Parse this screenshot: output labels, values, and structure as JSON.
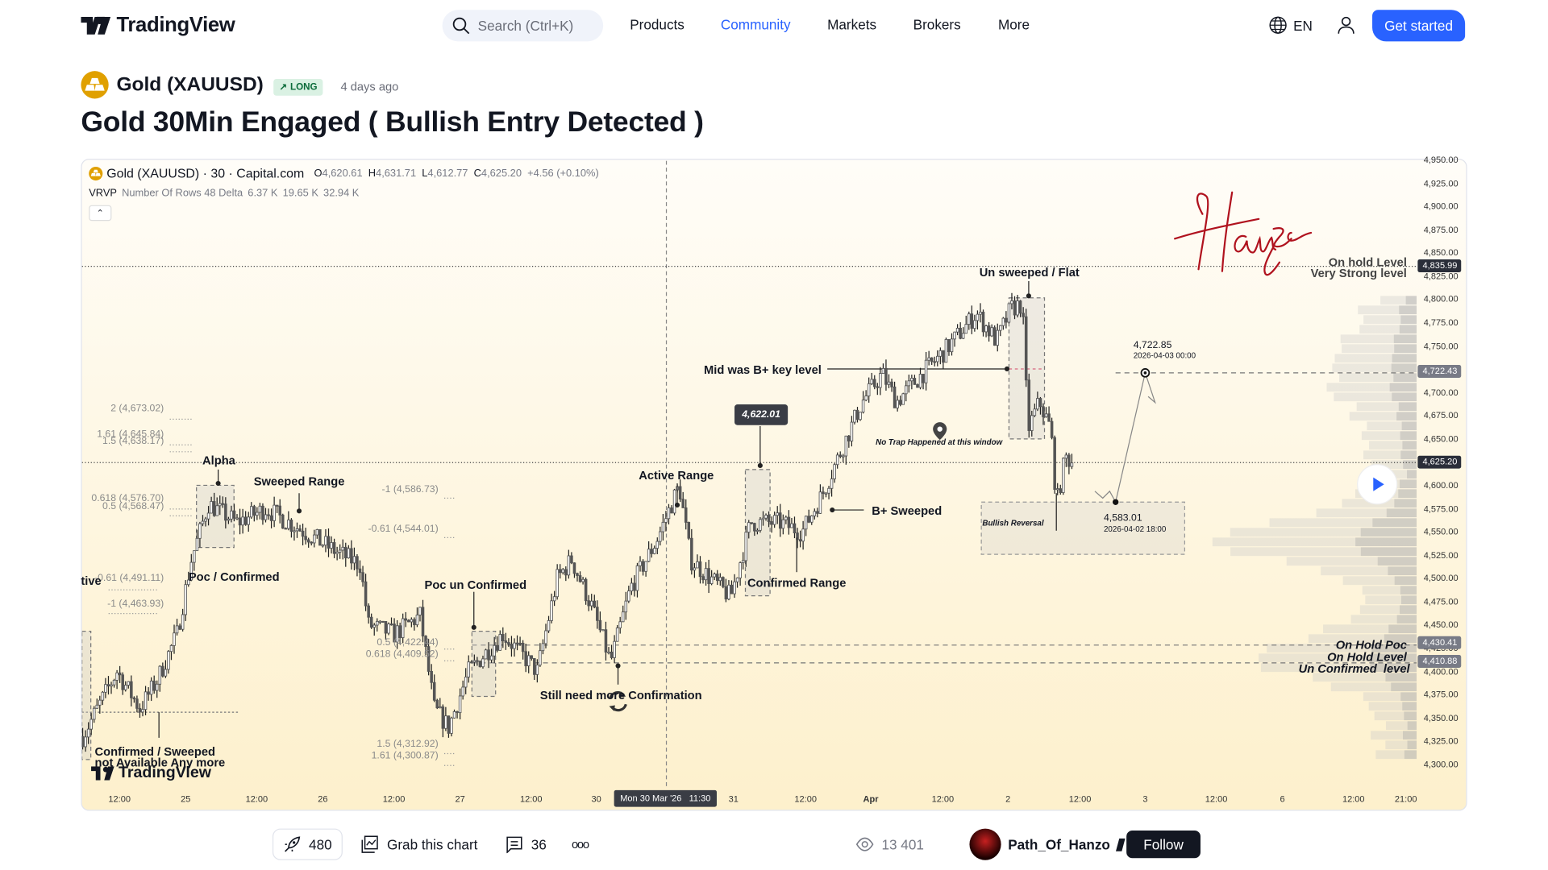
{
  "header": {
    "brand": "TradingView",
    "search_placeholder": "Search (Ctrl+K)",
    "nav": [
      "Products",
      "Community",
      "Markets",
      "Brokers",
      "More"
    ],
    "active_nav": "Community",
    "language": "EN",
    "get_started": "Get started",
    "accent": "#2962ff"
  },
  "idea": {
    "symbol": "Gold (XAUUSD)",
    "direction": "LONG",
    "age": "4 days ago",
    "title": "Gold 30Min Engaged ( Bullish Entry Detected )"
  },
  "chart": {
    "legend": {
      "symbol": "Gold (XAUUSD) · 30 · Capital.com",
      "o_label": "O",
      "o": "4,620.61",
      "h_label": "H",
      "h": "4,631.71",
      "l_label": "L",
      "l": "4,612.77",
      "c_label": "C",
      "c": "4,625.20",
      "change": "+4.56 (+0.10%)",
      "indicator": "VRVP",
      "indicator_params": "Number Of Rows 48 Delta",
      "vol1": "6.37 K",
      "vol2": "19.65 K",
      "vol3": "32.94 K"
    },
    "signature": "Hanzo",
    "watermark": "TradingView",
    "crosshair_time": "Mon 30 Mar '26   11:30",
    "annotations": {
      "alpha": "Alpha",
      "sweeped_range": "Sweeped Range",
      "poc_confirmed": "Poc / Confirmed",
      "tive": "tive",
      "poc_unconfirmed": "Poc un Confirmed",
      "active_range": "Active Range",
      "still_need": "Still need more Confirmation",
      "confirmed_range": "Confirmed Range",
      "mid_b": "Mid was B+ key level",
      "b_swept": "B+ Sweeped",
      "unswept": "Un sweeped / Flat",
      "on_hold_level": "On hold Level",
      "very_strong": "Very Strong level",
      "on_hold_poc": "On Hold Poc",
      "on_hold_level2": "On Hold Level",
      "unconfirmed_level": "Un Confirmed  level",
      "confirmed_swept": "Confirmed / Sweeped",
      "not_available": "not Available Any more",
      "no_trap": "No Trap Happened at this window",
      "bullish_reversal": "Bullish Reversal",
      "marker_price": "4,622.01",
      "low_price": "4,583.01",
      "low_time": "2026-04-02 18:00",
      "target_price": "4,722.85",
      "target_time": "2026-04-03 00:00"
    },
    "fib_left": [
      "2 (4,673.02)",
      "1.61 (4,645.84)",
      "1.5 (4,638.17)",
      "0.618 (4,576.70)",
      "0.5 (4,568.47)",
      "-0.61 (4,491.11)",
      "-1 (4,463.93)"
    ],
    "fib_mid": [
      "-1 (4,586.73)",
      "-0.61 (4,544.01)",
      "0.5 (4,422.44)",
      "0.618 (4,409.52)",
      "1.5 (4,312.92)",
      "1.61 (4,300.87)"
    ]
  },
  "chart_data": {
    "type": "candlestick",
    "interval": "30",
    "y_ticks": [
      "4,950.00",
      "4,925.00",
      "4,900.00",
      "4,875.00",
      "4,850.00",
      "4,825.00",
      "4,800.00",
      "4,775.00",
      "4,750.00",
      "4,725.00",
      "4,700.00",
      "4,675.00",
      "4,650.00",
      "4,625.00",
      "4,600.00",
      "4,575.00",
      "4,550.00",
      "4,525.00",
      "4,500.00",
      "4,475.00",
      "4,450.00",
      "4,425.00",
      "4,400.00",
      "4,375.00",
      "4,350.00",
      "4,325.00",
      "4,300.00"
    ],
    "ylim": [
      4300,
      4950
    ],
    "x_ticks": [
      "12:00",
      "25",
      "12:00",
      "26",
      "12:00",
      "27",
      "12:00",
      "30",
      "31",
      "12:00",
      "Apr",
      "12:00",
      "2",
      "12:00",
      "3",
      "12:00",
      "6",
      "12:00",
      "21:00"
    ],
    "price_labels": [
      {
        "value": "4,835.99",
        "color": "#2a2e39"
      },
      {
        "value": "4,722.43",
        "color": "#787b86"
      },
      {
        "value": "4,625.20",
        "color": "#2a2e39"
      },
      {
        "value": "4,430.41",
        "color": "#787b86"
      },
      {
        "value": "4,410.88",
        "color": "#787b86"
      }
    ],
    "approx_close": [
      [
        "03-24 06:00",
        4330
      ],
      [
        "03-24 12:00",
        4400
      ],
      [
        "03-24 16:00",
        4360
      ],
      [
        "03-24 19:00",
        4390
      ],
      [
        "03-24 22:30",
        4440
      ],
      [
        "03-25 01:00",
        4520
      ],
      [
        "03-25 04:00",
        4580
      ],
      [
        "03-25 09:00",
        4560
      ],
      [
        "03-25 14:00",
        4575
      ],
      [
        "03-25 19:30",
        4555
      ],
      [
        "03-26 02:00",
        4530
      ],
      [
        "03-26 06:30",
        4515
      ],
      [
        "03-26 08:00",
        4450
      ],
      [
        "03-26 12:30",
        4440
      ],
      [
        "03-26 17:00",
        4460
      ],
      [
        "03-26 19:30",
        4360
      ],
      [
        "03-26 22:00",
        4340
      ],
      [
        "03-27 01:30",
        4400
      ],
      [
        "03-27 07:30",
        4440
      ],
      [
        "03-27 13:30",
        4400
      ],
      [
        "03-27 17:00",
        4500
      ],
      [
        "03-27 19:30",
        4520
      ],
      [
        "03-27 23:00",
        4470
      ],
      [
        "03-30 02:30",
        4410
      ],
      [
        "03-30 06:00",
        4490
      ],
      [
        "03-30 10:30",
        4540
      ],
      [
        "03-30 14:30",
        4600
      ],
      [
        "03-30 16:30",
        4520
      ],
      [
        "03-30 23:30",
        4480
      ],
      [
        "03-31 03:00",
        4560
      ],
      [
        "03-31 08:00",
        4560
      ],
      [
        "03-31 12:00",
        4550
      ],
      [
        "03-31 15:30",
        4590
      ],
      [
        "03-31 19:00",
        4640
      ],
      [
        "03-31 22:30",
        4690
      ],
      [
        "04-01 02:00",
        4720
      ],
      [
        "04-01 04:30",
        4690
      ],
      [
        "04-01 09:00",
        4720
      ],
      [
        "04-01 13:00",
        4745
      ],
      [
        "04-01 18:30",
        4785
      ],
      [
        "04-01 22:00",
        4755
      ],
      [
        "04-02 00:30",
        4790
      ],
      [
        "04-02 02:30",
        4795
      ],
      [
        "04-02 03:30",
        4660
      ],
      [
        "04-02 05:30",
        4690
      ],
      [
        "04-02 07:30",
        4660
      ],
      [
        "04-02 08:30",
        4580
      ],
      [
        "04-02 10:00",
        4630
      ],
      [
        "04-02 11:30",
        4625
      ]
    ],
    "projection": [
      [
        "04-02 18:00",
        4583.01
      ],
      [
        "04-03 00:00",
        4722.85
      ]
    ]
  },
  "footer": {
    "boosts": "480",
    "grab": "Grab this chart",
    "comments": "36",
    "views": "13 401",
    "author": "Path_Of_Hanzo",
    "follow": "Follow"
  }
}
